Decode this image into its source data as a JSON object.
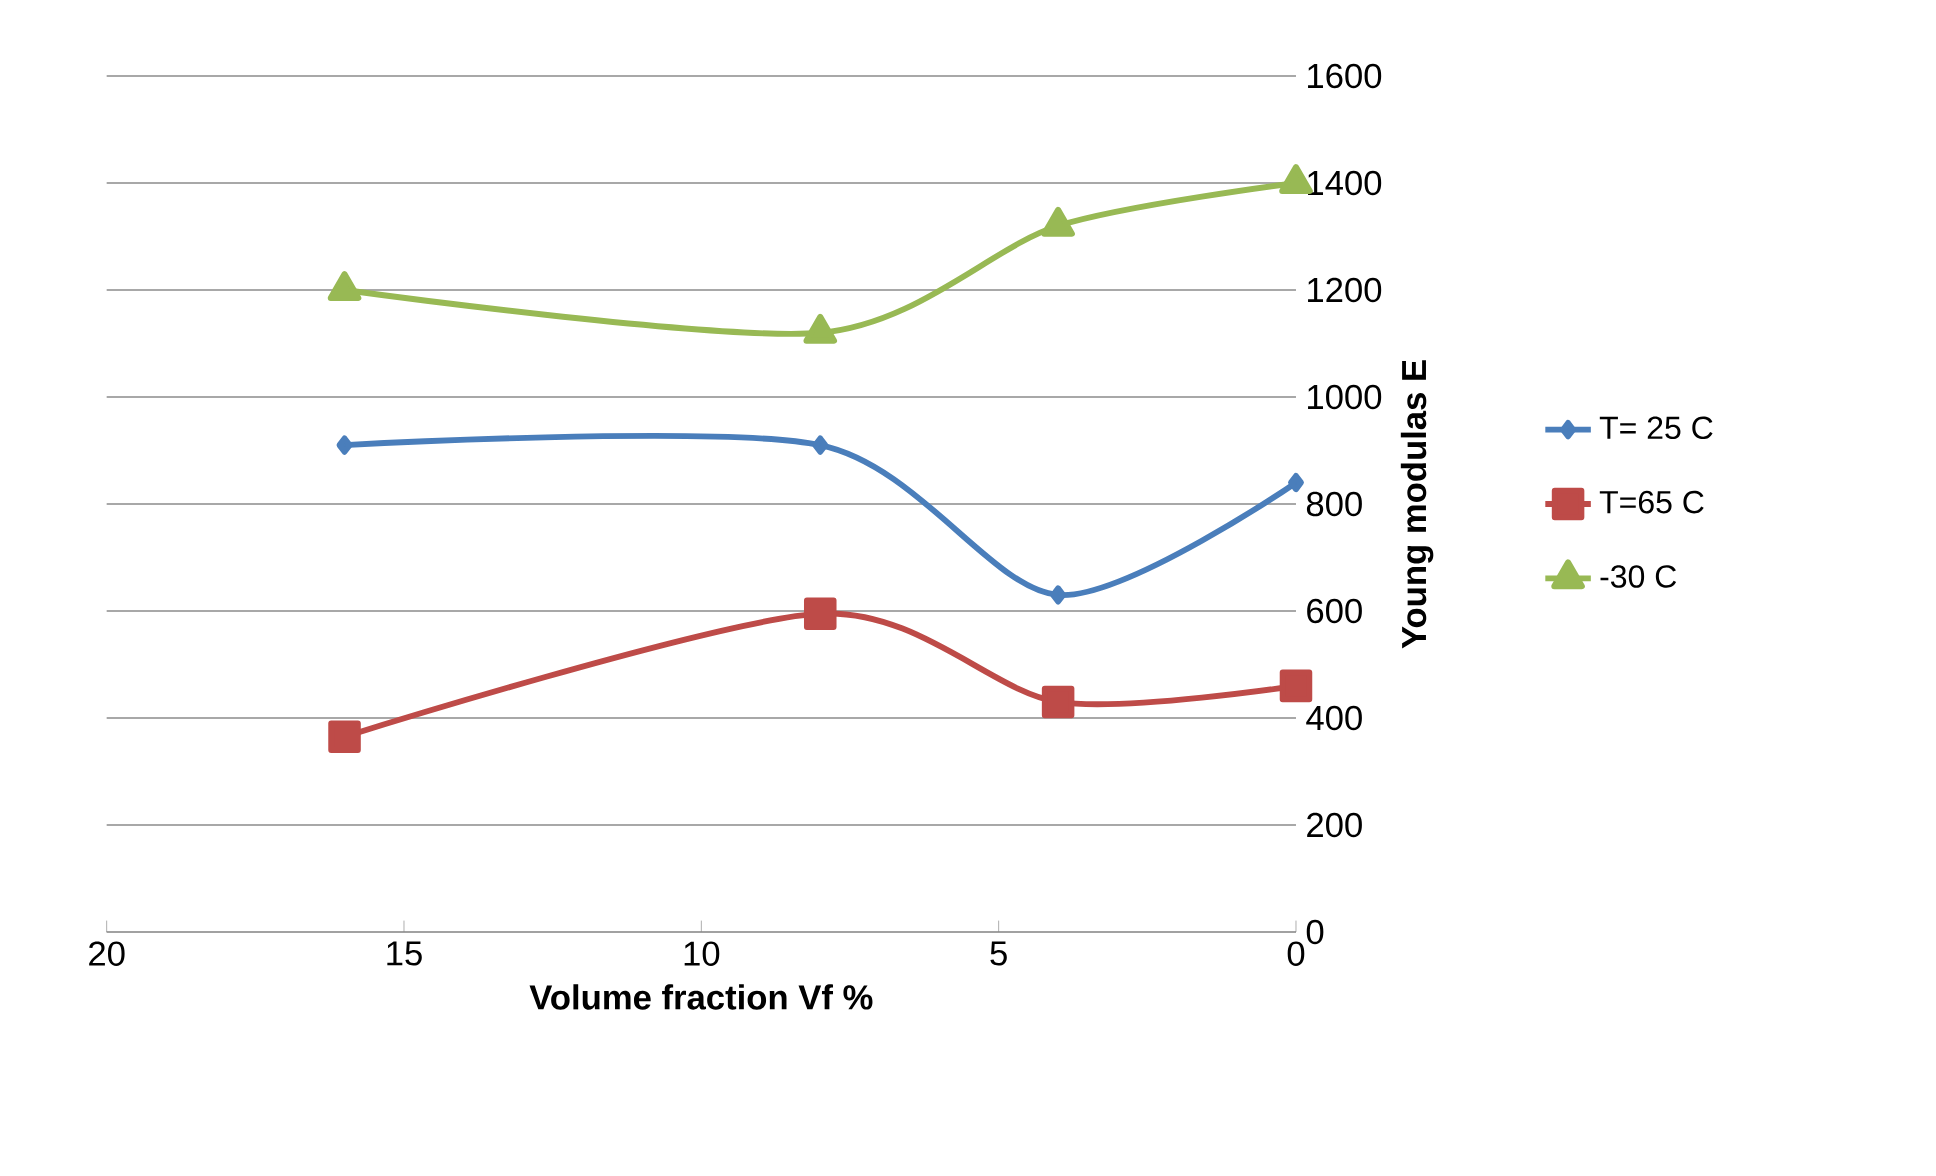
{
  "chart_data": {
    "type": "line",
    "xlabel": "Volume fraction Vf %",
    "ylabel": "Young modulas E",
    "x": [
      16,
      8,
      4,
      0
    ],
    "series": [
      {
        "name": "T= 25 C",
        "color": "#4a7ebb",
        "marker": "diamond",
        "values": [
          910,
          910,
          630,
          840
        ]
      },
      {
        "name": "T=65 C",
        "color": "#be4b48",
        "marker": "square",
        "values": [
          365,
          595,
          430,
          460
        ]
      },
      {
        "name": "-30 C",
        "color": "#98b954",
        "marker": "triangle",
        "values": [
          1200,
          1120,
          1320,
          1400
        ]
      }
    ],
    "xlim": [
      20,
      0
    ],
    "xticks": [
      20,
      15,
      10,
      5,
      0
    ],
    "ylim": [
      0,
      1600
    ],
    "yticks": [
      0,
      200,
      400,
      600,
      800,
      1000,
      1200,
      1400,
      1600
    ],
    "grid": "y",
    "legend": "right",
    "line_style": "solid"
  }
}
